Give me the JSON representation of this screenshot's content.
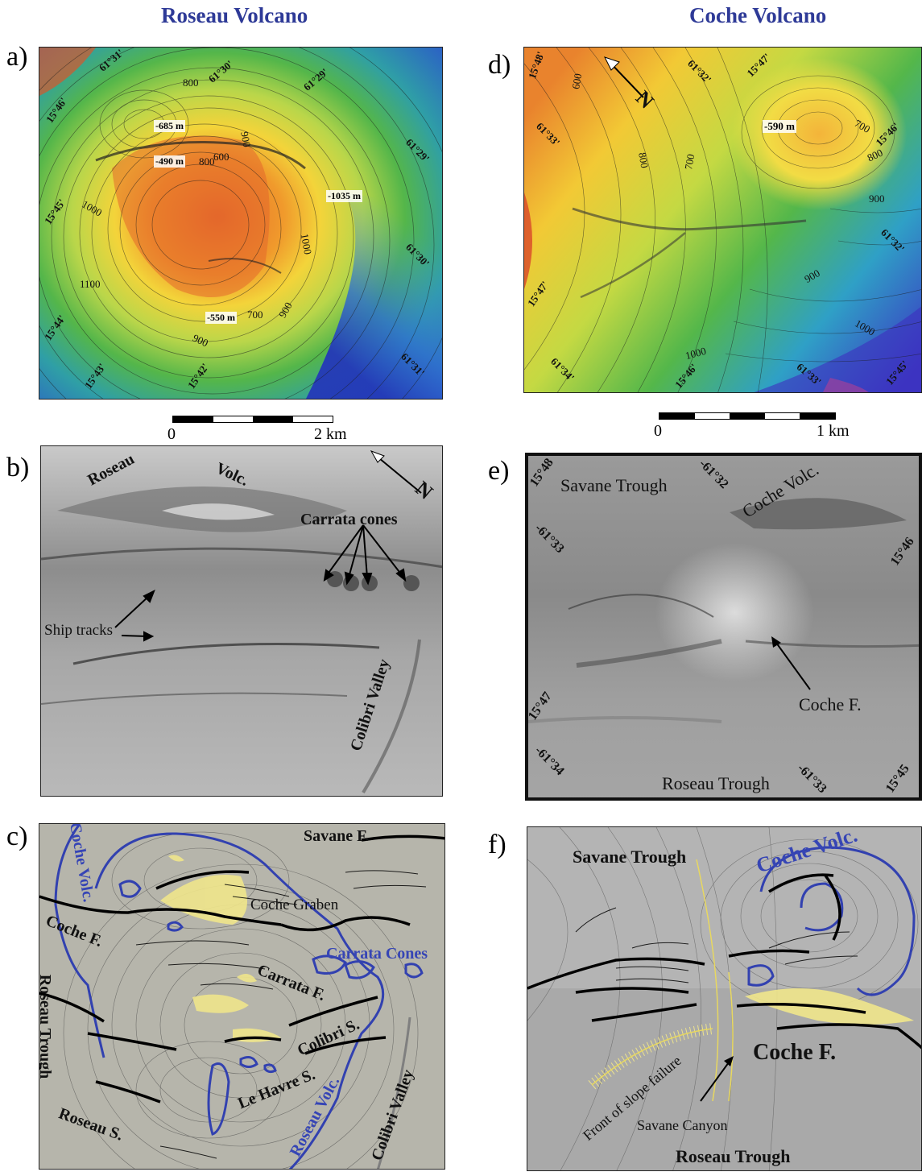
{
  "titles": {
    "left": "Roseau Volcano",
    "right": "Coche Volcano"
  },
  "panel_labels": [
    "a)",
    "b)",
    "c)",
    "d)",
    "e)",
    "f)"
  ],
  "scales": {
    "left": {
      "start": "0",
      "end": "2 km"
    },
    "right": {
      "start": "0",
      "end": "1 km"
    }
  },
  "panel_a": {
    "depths": [
      "-685 m",
      "-490 m",
      "-1035 m",
      "-550 m"
    ],
    "contours": [
      "800",
      "900",
      "1000",
      "1000",
      "1100",
      "800",
      "700",
      "900",
      "600",
      "900"
    ],
    "coords": [
      "61°31'",
      "61°30'",
      "61°29'",
      "15°46'",
      "61°29'",
      "15°45'",
      "61°30'",
      "15°44'",
      "15°43'",
      "15°42'",
      "61°31'"
    ]
  },
  "panel_b": {
    "labels": [
      "Roseau",
      "Volc.",
      "Carrata cones",
      "Ship tracks",
      "Colibri Valley"
    ],
    "north": "N"
  },
  "panel_c": {
    "labels": [
      "Savane F.",
      "Coche Volc.",
      "Coche Graben",
      "Coche F.",
      "Carrata Cones",
      "Carrata F.",
      "Roseau Trough",
      "Colibri S.",
      "Le Havre S.",
      "Roseau S.",
      "Roseau Volc.",
      "Colibri Valley"
    ]
  },
  "panel_d": {
    "depths": [
      "-590 m"
    ],
    "contours": [
      "600",
      "700",
      "800",
      "700",
      "800",
      "900",
      "900",
      "1000",
      "1000"
    ],
    "coords": [
      "15°48'",
      "61°32'",
      "15°47'",
      "61°33'",
      "15°46'",
      "61°32'",
      "15°47'",
      "61°34'",
      "15°46'",
      "61°33'",
      "15°45'"
    ],
    "north": "N"
  },
  "panel_e": {
    "labels": [
      "Savane Trough",
      "Coche Volc.",
      "Coche F.",
      "Roseau Trough"
    ],
    "coords": [
      "15°48",
      "-61°32",
      "-61°33",
      "15°46",
      "15°47",
      "-61°34",
      "-61°33",
      "15°45"
    ]
  },
  "panel_f": {
    "labels": [
      "Savane Trough",
      "Coche Volc.",
      "Coche F.",
      "Front of slope failure",
      "Savane Canyon",
      "Roseau Trough"
    ]
  }
}
